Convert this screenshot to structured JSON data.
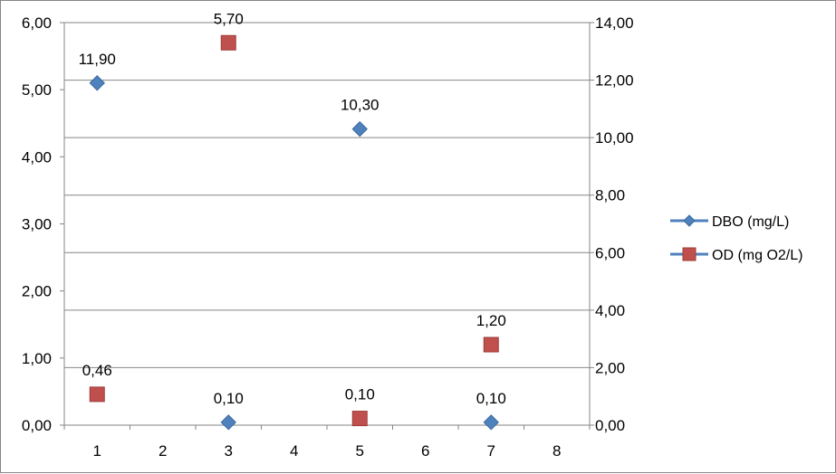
{
  "chart_data": {
    "type": "scatter",
    "x_categories": [
      "1",
      "2",
      "3",
      "4",
      "5",
      "6",
      "7",
      "8"
    ],
    "y_left": {
      "range": [
        0,
        6
      ],
      "ticks": [
        "0,00",
        "1,00",
        "2,00",
        "3,00",
        "4,00",
        "5,00",
        "6,00"
      ]
    },
    "y_right": {
      "range": [
        0,
        14
      ],
      "ticks": [
        "0,00",
        "2,00",
        "4,00",
        "6,00",
        "8,00",
        "10,00",
        "12,00",
        "14,00"
      ]
    },
    "grid": true,
    "legend_position": "right",
    "series": [
      {
        "name": "DBO (mg/L)",
        "axis": "right",
        "marker": "diamond",
        "color": "#4F81BD",
        "points": [
          {
            "x": 1,
            "y": 11.9,
            "label": "11,90"
          },
          {
            "x": 3,
            "y": 0.1,
            "label": "0,10"
          },
          {
            "x": 5,
            "y": 10.3,
            "label": "10,30"
          },
          {
            "x": 7,
            "y": 0.1,
            "label": "0,10"
          }
        ]
      },
      {
        "name": "OD (mg O2/L)",
        "axis": "left",
        "marker": "square",
        "color": "#C0504D",
        "points": [
          {
            "x": 1,
            "y": 0.46,
            "label": "0,46"
          },
          {
            "x": 3,
            "y": 5.7,
            "label": "5,70"
          },
          {
            "x": 5,
            "y": 0.1,
            "label": "0,10"
          },
          {
            "x": 7,
            "y": 1.2,
            "label": "1,20"
          }
        ]
      }
    ]
  }
}
